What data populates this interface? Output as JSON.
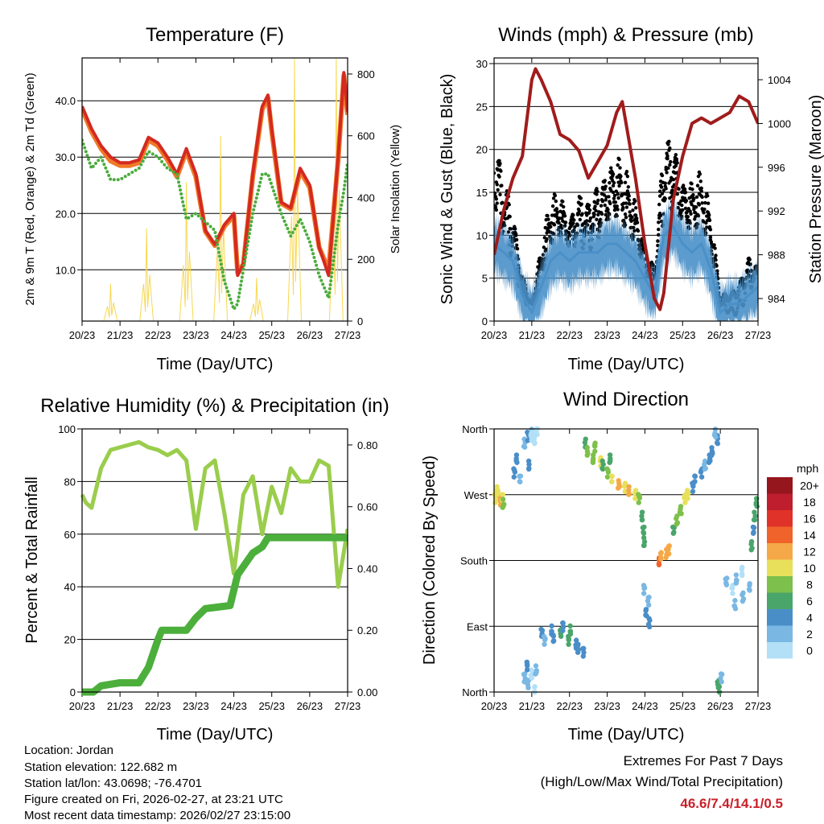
{
  "x_ticks": [
    "20/23",
    "21/23",
    "22/23",
    "23/23",
    "24/23",
    "25/23",
    "26/23",
    "27/23"
  ],
  "info": {
    "location": "Location: Jordan",
    "elevation": "Station elevation: 122.682 m",
    "latlon": "Station lat/lon: 43.0698; -76.4701",
    "created": "Figure created on Fri, 2026-02-27, at 23:21 UTC",
    "timestamp": "Most recent data timestamp: 2026/02/27 23:15:00"
  },
  "extremes": {
    "title": "Extremes For Past 7 Days",
    "subtitle": "(High/Low/Max Wind/Total Precipitation)",
    "values": "46.6/7.4/14.1/0.5",
    "color": "#c8202a"
  },
  "chart_data": [
    {
      "type": "line",
      "title": "Temperature (F)",
      "xlabel": "Time (Day/UTC)",
      "ylabel": "2m & 9m T (Red, Orange) & 2m Td (Green)",
      "y2label": "Solar Insolation (Yellow)",
      "xlim": [
        0,
        7
      ],
      "ylim": [
        0.9,
        47.6
      ],
      "y2lim": [
        0,
        852
      ],
      "yticks": [
        10,
        20,
        30,
        40
      ],
      "ytick_labels": [
        "10.0",
        "20.0",
        "30.0",
        "40.0"
      ],
      "y2ticks": [
        0,
        200,
        400,
        600,
        800
      ],
      "y2tick_labels": [
        "0",
        "200",
        "400",
        "600",
        "800"
      ],
      "grid": true,
      "x": [
        0,
        0.25,
        0.5,
        0.75,
        1,
        1.25,
        1.5,
        1.75,
        2,
        2.25,
        2.5,
        2.75,
        3,
        3.25,
        3.5,
        3.75,
        4,
        4.1,
        4.25,
        4.5,
        4.75,
        4.9,
        5,
        5.25,
        5.5,
        5.75,
        6,
        6.25,
        6.5,
        6.75,
        6.9,
        7
      ],
      "series": [
        {
          "name": "2m T",
          "color": "#d42a20",
          "values": [
            39,
            35,
            32,
            30,
            29,
            29,
            29.5,
            33.5,
            32.5,
            30,
            27,
            31.5,
            27,
            17,
            14.5,
            18,
            20,
            9,
            11,
            27,
            39,
            41,
            35,
            22,
            21,
            28,
            25,
            14,
            9,
            30,
            45,
            38
          ]
        },
        {
          "name": "9m T",
          "color": "#f07a28",
          "values": [
            38.5,
            34.5,
            31.5,
            29.3,
            28.5,
            28.5,
            29,
            33,
            32,
            29.5,
            26.5,
            31,
            26.5,
            16.8,
            14.3,
            17.7,
            19.6,
            9.5,
            11,
            26.5,
            38.5,
            40.5,
            34.5,
            21.8,
            20.8,
            27.5,
            24.6,
            14,
            10,
            29.5,
            44.5,
            37.5
          ]
        },
        {
          "name": "2m Td",
          "color": "#4aac3c",
          "values": [
            33,
            28,
            30,
            26,
            26,
            27,
            28,
            31,
            30,
            28,
            27,
            19,
            20,
            18.5,
            17,
            8,
            3,
            4,
            10,
            20,
            27,
            27,
            25,
            20,
            16,
            19,
            15,
            9,
            5,
            18,
            24,
            29
          ]
        }
      ],
      "solar": {
        "name": "Solar Insolation",
        "color": "#f7d850",
        "peaks": [
          {
            "day": 0.75,
            "value": 120
          },
          {
            "day": 1.7,
            "value": 300
          },
          {
            "day": 2.75,
            "value": 450
          },
          {
            "day": 3.65,
            "value": 600
          },
          {
            "day": 4.6,
            "value": 140
          },
          {
            "day": 5.6,
            "value": 850
          },
          {
            "day": 6.7,
            "value": 850
          }
        ]
      }
    },
    {
      "type": "line",
      "title": "Winds (mph) & Pressure (mb)",
      "xlabel": "Time (Day/UTC)",
      "ylabel": "Sonic Wind & Gust (Blue, Black)",
      "y2label": "Station Pressure (Maroon)",
      "xlim": [
        0,
        7
      ],
      "ylim": [
        0,
        30.66
      ],
      "y2lim": [
        981.94,
        1005.99
      ],
      "yticks": [
        0,
        5,
        10,
        15,
        20,
        25,
        30
      ],
      "ytick_labels": [
        "0",
        "5",
        "10",
        "15",
        "20",
        "25",
        "30"
      ],
      "y2ticks": [
        984,
        988,
        992,
        996,
        1000,
        1004
      ],
      "y2tick_labels": [
        "984",
        "988",
        "992",
        "996",
        "1000",
        "1004"
      ],
      "grid": true,
      "x": [
        0,
        0.25,
        0.5,
        0.75,
        1,
        1.25,
        1.5,
        1.75,
        2,
        2.25,
        2.5,
        2.75,
        3,
        3.25,
        3.5,
        3.75,
        4,
        4.25,
        4.5,
        4.75,
        5,
        5.25,
        5.5,
        5.75,
        6,
        6.25,
        6.5,
        6.75,
        7
      ],
      "series": [
        {
          "name": "Sonic Wind",
          "color": "#4a90c8",
          "values": [
            9,
            8,
            7,
            3,
            1,
            4,
            7,
            8,
            7,
            8,
            8,
            8,
            9,
            9,
            8,
            7,
            5,
            3,
            10,
            11,
            9,
            8,
            9,
            6,
            1,
            2,
            2,
            3,
            4
          ]
        },
        {
          "name": "Gust",
          "color": "#000000",
          "values": [
            20,
            16,
            12,
            5,
            2,
            7,
            12,
            13,
            11,
            14,
            13,
            15,
            16,
            17,
            15,
            12,
            8,
            6,
            20,
            20,
            15,
            14,
            15,
            11,
            3,
            3,
            4,
            7,
            6
          ]
        }
      ],
      "pressure": {
        "name": "Station Pressure",
        "color": "#a01c1c",
        "x": [
          0,
          0.25,
          0.5,
          0.75,
          1,
          1.1,
          1.25,
          1.5,
          1.75,
          2,
          2.25,
          2.5,
          2.75,
          3,
          3.25,
          3.4,
          3.5,
          3.75,
          4,
          4.25,
          4.4,
          4.5,
          4.75,
          5,
          5.25,
          5.5,
          5.75,
          6,
          6.25,
          6.5,
          6.75,
          7
        ],
        "values": [
          988,
          992,
          995,
          997,
          1004,
          1005,
          1004,
          1002,
          999,
          998.5,
          997.5,
          995,
          996.5,
          998,
          1001,
          1002,
          1000,
          995,
          989,
          984,
          983,
          984.5,
          993,
          997,
          1000,
          1000.5,
          1000,
          1000.5,
          1001,
          1002.5,
          1002,
          1000
        ]
      }
    },
    {
      "type": "line",
      "title": "Relative Humidity (%) & Precipitation (in)",
      "xlabel": "Time (Day/UTC)",
      "ylabel": "Percent & Total Rainfall",
      "xlim": [
        0,
        7
      ],
      "ylim": [
        0,
        100
      ],
      "y2lim": [
        0,
        0.852
      ],
      "yticks": [
        0,
        20,
        40,
        60,
        80,
        100
      ],
      "ytick_labels": [
        "0",
        "20",
        "40",
        "60",
        "80",
        "100"
      ],
      "y2ticks": [
        0,
        0.2,
        0.4,
        0.6,
        0.8
      ],
      "y2tick_labels": [
        "0.00",
        "0.20",
        "0.40",
        "0.60",
        "0.80"
      ],
      "grid": true,
      "rh": {
        "name": "Relative Humidity",
        "color": "#9acd4c",
        "x": [
          0,
          0.1,
          0.25,
          0.5,
          0.75,
          1,
          1.25,
          1.5,
          1.75,
          2,
          2.25,
          2.5,
          2.75,
          3,
          3.25,
          3.5,
          3.75,
          4,
          4.25,
          4.5,
          4.75,
          5,
          5.25,
          5.5,
          5.75,
          6,
          6.25,
          6.5,
          6.75,
          7
        ],
        "values": [
          75,
          72,
          70,
          85,
          92,
          93,
          94,
          95,
          93,
          92,
          90,
          92,
          88,
          62,
          85,
          88,
          68,
          45,
          75,
          82,
          60,
          78,
          68,
          85,
          80,
          80,
          88,
          86,
          40,
          62
        ]
      },
      "precip": {
        "name": "Total Precipitation",
        "color": "#4caf3c",
        "x": [
          0,
          0.3,
          0.5,
          1,
          1.5,
          1.75,
          2,
          2.1,
          2.75,
          3,
          3.25,
          3.9,
          4.1,
          4.5,
          4.75,
          4.9,
          7
        ],
        "values": [
          0,
          0,
          0.02,
          0.03,
          0.03,
          0.08,
          0.17,
          0.2,
          0.2,
          0.24,
          0.27,
          0.28,
          0.38,
          0.45,
          0.47,
          0.5,
          0.5
        ]
      }
    },
    {
      "type": "scatter",
      "title": "Wind Direction",
      "xlabel": "Time (Day/UTC)",
      "ylabel": "Direction (Colored By Speed)",
      "xlim": [
        0,
        7
      ],
      "ylim": [
        0,
        360
      ],
      "yticks": [
        0,
        90,
        180,
        270,
        360
      ],
      "ytick_labels": [
        "North",
        "East",
        "South",
        "West",
        "North"
      ],
      "grid": true,
      "colorbar": {
        "title": "mph",
        "labels": [
          "0",
          "2",
          "4",
          "6",
          "8",
          "10",
          "12",
          "14",
          "16",
          "18",
          "20+"
        ],
        "colors": [
          "#b3e0f7",
          "#7ab8e3",
          "#4a8ec8",
          "#4aa56b",
          "#7dc04b",
          "#e8e05a",
          "#f5a847",
          "#f0632b",
          "#e03228",
          "#be1e2d",
          "#96161e"
        ]
      },
      "points": [
        [
          0.02,
          265,
          10
        ],
        [
          0.08,
          270,
          11
        ],
        [
          0.14,
          262,
          12
        ],
        [
          0.2,
          268,
          10
        ],
        [
          0.25,
          258,
          9
        ],
        [
          0.1,
          275,
          11
        ],
        [
          0.55,
          300,
          4
        ],
        [
          0.62,
          320,
          4
        ],
        [
          0.7,
          290,
          3
        ],
        [
          0.8,
          340,
          3
        ],
        [
          0.9,
          350,
          4
        ],
        [
          0.95,
          310,
          4
        ],
        [
          1.0,
          355,
          2
        ],
        [
          1.05,
          345,
          1
        ],
        [
          1.12,
          358,
          1
        ],
        [
          1.0,
          350,
          1
        ],
        [
          0.8,
          20,
          2
        ],
        [
          0.9,
          10,
          3
        ],
        [
          1.0,
          25,
          1
        ],
        [
          1.05,
          5,
          1
        ],
        [
          1.1,
          30,
          2
        ],
        [
          0.85,
          35,
          4
        ],
        [
          1.25,
          80,
          4
        ],
        [
          1.35,
          70,
          3
        ],
        [
          1.5,
          85,
          5
        ],
        [
          1.6,
          75,
          4
        ],
        [
          1.75,
          80,
          6
        ],
        [
          1.85,
          90,
          5
        ],
        [
          1.95,
          70,
          6
        ],
        [
          2.05,
          85,
          7
        ],
        [
          2.15,
          65,
          4
        ],
        [
          2.25,
          60,
          5
        ],
        [
          2.35,
          55,
          4
        ],
        [
          2.4,
          340,
          7
        ],
        [
          2.5,
          330,
          8
        ],
        [
          2.6,
          320,
          9
        ],
        [
          2.7,
          335,
          8
        ],
        [
          2.8,
          315,
          10
        ],
        [
          2.9,
          310,
          6
        ],
        [
          3.0,
          300,
          9
        ],
        [
          3.05,
          320,
          7
        ],
        [
          3.15,
          290,
          11
        ],
        [
          3.3,
          285,
          12
        ],
        [
          3.45,
          280,
          10
        ],
        [
          3.6,
          275,
          12
        ],
        [
          3.75,
          270,
          11
        ],
        [
          3.85,
          265,
          9
        ],
        [
          3.9,
          240,
          6
        ],
        [
          3.95,
          220,
          7
        ],
        [
          4.0,
          205,
          6
        ],
        [
          4.0,
          140,
          3
        ],
        [
          4.05,
          110,
          4
        ],
        [
          4.1,
          95,
          4
        ],
        [
          4.08,
          125,
          2
        ],
        [
          4.35,
          180,
          14
        ],
        [
          4.45,
          185,
          13
        ],
        [
          4.55,
          190,
          13
        ],
        [
          4.65,
          195,
          12
        ],
        [
          4.75,
          220,
          7
        ],
        [
          4.85,
          235,
          8
        ],
        [
          4.95,
          250,
          8
        ],
        [
          5.05,
          265,
          10
        ],
        [
          5.15,
          270,
          11
        ],
        [
          5.25,
          280,
          4
        ],
        [
          5.35,
          290,
          4
        ],
        [
          5.5,
          300,
          4
        ],
        [
          5.6,
          310,
          3
        ],
        [
          5.7,
          320,
          4
        ],
        [
          5.8,
          330,
          4
        ],
        [
          5.9,
          345,
          4
        ],
        [
          5.85,
          355,
          3
        ],
        [
          5.95,
          10,
          6
        ],
        [
          6.0,
          5,
          7
        ],
        [
          6.02,
          20,
          3
        ],
        [
          6.15,
          150,
          2
        ],
        [
          6.3,
          140,
          1
        ],
        [
          6.45,
          155,
          2
        ],
        [
          6.6,
          130,
          2
        ],
        [
          6.75,
          145,
          3
        ],
        [
          6.4,
          120,
          2
        ],
        [
          6.55,
          165,
          1
        ],
        [
          6.85,
          200,
          6
        ],
        [
          6.92,
          240,
          7
        ],
        [
          6.98,
          260,
          6
        ],
        [
          6.9,
          220,
          5
        ]
      ]
    }
  ]
}
